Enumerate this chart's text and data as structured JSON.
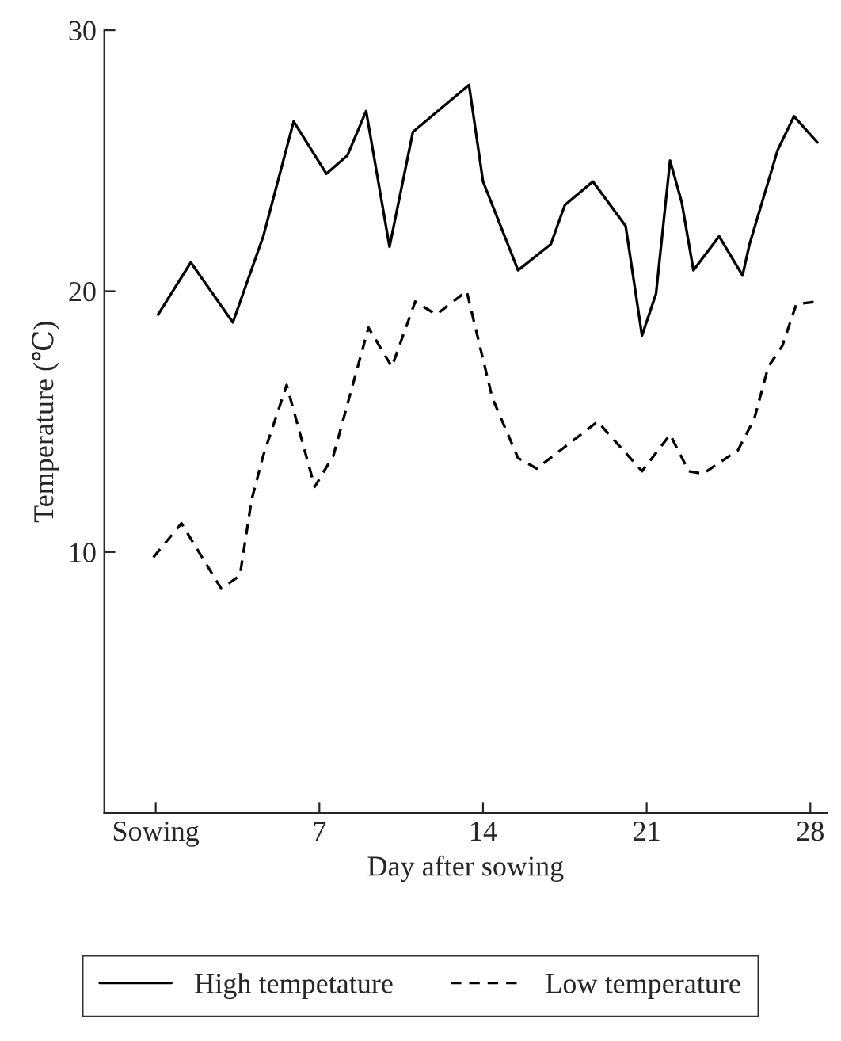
{
  "chart_data": {
    "type": "line",
    "xlabel": "Day after sowing",
    "ylabel": "Temperature (℃)",
    "xlim": [
      -2.2,
      28.7
    ],
    "ylim": [
      0,
      30
    ],
    "xticks": [
      {
        "value": 0,
        "label": "Sowing"
      },
      7,
      14,
      21,
      28
    ],
    "yticks": [
      10,
      20,
      30
    ],
    "grid": false,
    "legend": "bottom",
    "marker": "none",
    "series": [
      {
        "name": "High tempetature",
        "color": "#000000",
        "line_style": "solid",
        "x": [
          0.1,
          1.5,
          3.3,
          4.6,
          5.9,
          7.3,
          8.2,
          9.0,
          10.0,
          11.0,
          13.4,
          14.0,
          15.5,
          16.9,
          17.5,
          18.7,
          20.1,
          20.8,
          21.4,
          22.0,
          22.5,
          23.0,
          24.1,
          25.1,
          25.4,
          26.6,
          27.3,
          28.3
        ],
        "values": [
          19.1,
          21.1,
          18.8,
          22.1,
          26.5,
          24.5,
          25.2,
          26.9,
          21.7,
          26.1,
          27.9,
          24.2,
          20.8,
          21.8,
          23.3,
          24.2,
          22.5,
          18.3,
          19.9,
          25.0,
          23.4,
          20.8,
          22.1,
          20.6,
          21.8,
          25.4,
          26.7,
          25.7
        ]
      },
      {
        "name": "Low temperature",
        "color": "#000000",
        "line_style": "dashed",
        "x": [
          -0.1,
          1.1,
          2.8,
          3.6,
          4.1,
          4.6,
          5.6,
          6.8,
          7.6,
          9.1,
          10.1,
          11.1,
          12.0,
          13.3,
          14.4,
          15.5,
          16.3,
          18.9,
          20.8,
          22.0,
          22.8,
          23.4,
          24.9,
          25.6,
          26.2,
          26.8,
          27.4,
          28.3
        ],
        "values": [
          9.8,
          11.1,
          8.6,
          9.1,
          12.0,
          13.7,
          16.4,
          12.5,
          13.7,
          18.6,
          17.1,
          19.6,
          19.1,
          20.0,
          15.9,
          13.6,
          13.2,
          15.0,
          13.1,
          14.5,
          13.1,
          13.0,
          13.9,
          15.1,
          17.1,
          17.9,
          19.5,
          19.6
        ]
      }
    ]
  }
}
